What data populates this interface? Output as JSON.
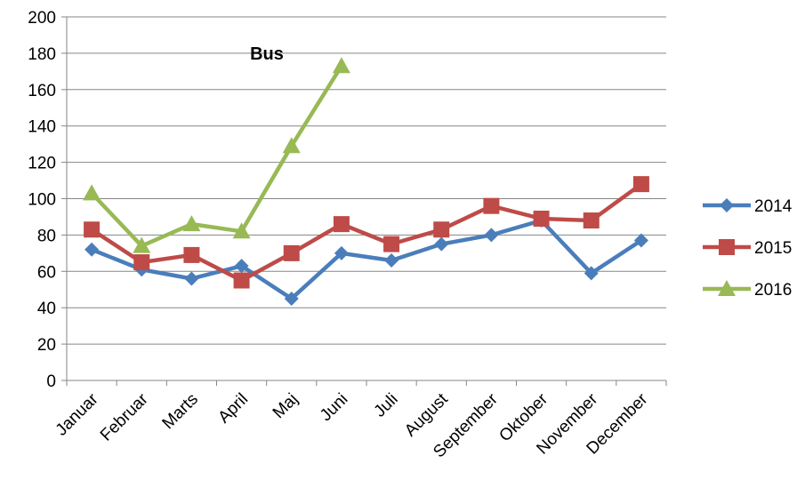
{
  "chart_data": {
    "type": "line",
    "title": "Bus",
    "categories": [
      "Januar",
      "Februar",
      "Marts",
      "April",
      "Maj",
      "Juni",
      "Juli",
      "August",
      "September",
      "Oktober",
      "November",
      "December"
    ],
    "ylim": [
      0,
      200
    ],
    "yticks": [
      0,
      20,
      40,
      60,
      80,
      100,
      120,
      140,
      160,
      180,
      200
    ],
    "grid": true,
    "legend_position": "right",
    "series": [
      {
        "name": "2014",
        "color": "#4A7EBB",
        "marker": "diamond",
        "values": [
          72,
          61,
          56,
          63,
          45,
          70,
          66,
          75,
          80,
          88,
          59,
          77
        ]
      },
      {
        "name": "2015",
        "color": "#BE4B48",
        "marker": "square",
        "values": [
          83,
          65,
          69,
          55,
          70,
          86,
          75,
          83,
          96,
          89,
          88,
          108
        ]
      },
      {
        "name": "2016",
        "color": "#98B954",
        "marker": "triangle",
        "values": [
          103,
          74,
          86,
          82,
          129,
          173,
          null,
          null,
          null,
          null,
          null,
          null
        ]
      }
    ]
  }
}
